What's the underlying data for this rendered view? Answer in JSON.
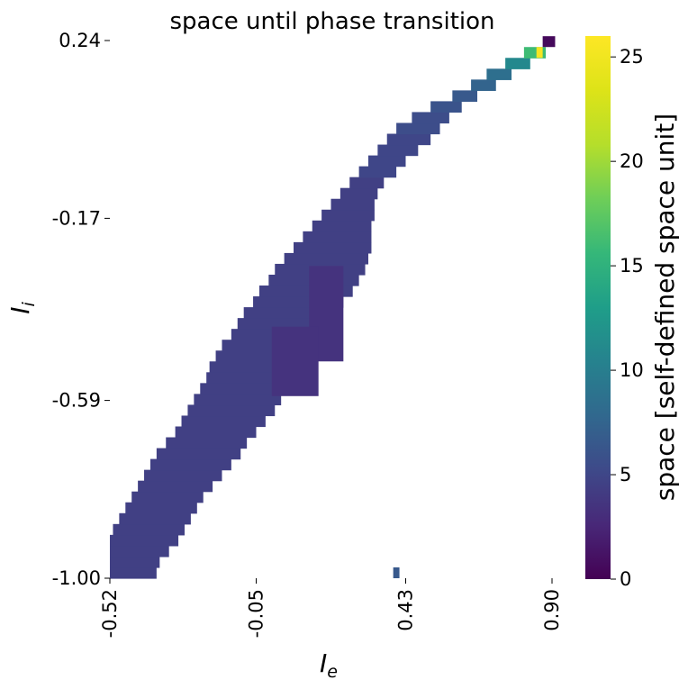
{
  "chart_data": {
    "type": "heatmap",
    "title": "space until phase transition",
    "xlabel": {
      "base": "I",
      "sub": "e"
    },
    "ylabel": {
      "base": "I",
      "sub": "i"
    },
    "x_range": [
      -0.52,
      0.9
    ],
    "y_range": [
      -1.0,
      0.24
    ],
    "x_ticks": [
      -0.52,
      -0.05,
      0.43,
      0.9
    ],
    "x_tick_labels": [
      "-0.52",
      "-0.05",
      "0.43",
      "0.90"
    ],
    "y_ticks": [
      0.24,
      -0.17,
      -0.59,
      -1.0
    ],
    "y_tick_labels": [
      "0.24",
      "-0.17",
      "-0.59",
      "-1.00"
    ],
    "colorbar": {
      "label": "space [self-defined space unit]",
      "colormap": "viridis",
      "range": [
        0,
        26
      ],
      "ticks": [
        0,
        5,
        10,
        15,
        20,
        25
      ],
      "tick_labels": [
        "0",
        "5",
        "10",
        "15",
        "20",
        "25"
      ]
    },
    "grid": false,
    "region_description": "Nonzero values fill a diagonal band from lower-left to upper-right; elsewhere cells are empty (white).",
    "bands": [
      {
        "y": -0.9875,
        "x_min": -0.52,
        "x_max": -0.37,
        "value": 4.5
      },
      {
        "y": -0.9625,
        "x_min": -0.52,
        "x_max": -0.36,
        "value": 4.5
      },
      {
        "y": -0.9375,
        "x_min": -0.52,
        "x_max": -0.33,
        "value": 4.5
      },
      {
        "y": -0.9125,
        "x_min": -0.52,
        "x_max": -0.3,
        "value": 4.5
      },
      {
        "y": -0.8875,
        "x_min": -0.51,
        "x_max": -0.28,
        "value": 4.5
      },
      {
        "y": -0.8625,
        "x_min": -0.49,
        "x_max": -0.26,
        "value": 4.5
      },
      {
        "y": -0.8375,
        "x_min": -0.47,
        "x_max": -0.24,
        "value": 4.5
      },
      {
        "y": -0.8125,
        "x_min": -0.45,
        "x_max": -0.22,
        "value": 4.5
      },
      {
        "y": -0.7875,
        "x_min": -0.43,
        "x_max": -0.19,
        "value": 4.5
      },
      {
        "y": -0.7625,
        "x_min": -0.41,
        "x_max": -0.16,
        "value": 4.5
      },
      {
        "y": -0.7375,
        "x_min": -0.39,
        "x_max": -0.13,
        "value": 4.5
      },
      {
        "y": -0.7125,
        "x_min": -0.37,
        "x_max": -0.1,
        "value": 4.5
      },
      {
        "y": -0.6875,
        "x_min": -0.34,
        "x_max": -0.08,
        "value": 4.5
      },
      {
        "y": -0.6625,
        "x_min": -0.31,
        "x_max": -0.05,
        "value": 4.5
      },
      {
        "y": -0.6375,
        "x_min": -0.29,
        "x_max": -0.02,
        "value": 4.5
      },
      {
        "y": -0.6125,
        "x_min": -0.27,
        "x_max": 0.01,
        "value": 4.5
      },
      {
        "y": -0.5875,
        "x_min": -0.25,
        "x_max": 0.03,
        "value": 4.5
      },
      {
        "y": -0.5625,
        "x_min": -0.23,
        "x_max": 0.05,
        "value": 4.5
      },
      {
        "y": -0.5375,
        "x_min": -0.21,
        "x_max": 0.07,
        "value": 4.5
      },
      {
        "y": -0.5125,
        "x_min": -0.2,
        "x_max": 0.09,
        "value": 4.5
      },
      {
        "y": -0.4875,
        "x_min": -0.18,
        "x_max": 0.11,
        "value": 4.5
      },
      {
        "y": -0.4625,
        "x_min": -0.16,
        "x_max": 0.14,
        "value": 4.5
      },
      {
        "y": -0.4375,
        "x_min": -0.13,
        "x_max": 0.16,
        "value": 4.5
      },
      {
        "y": -0.4125,
        "x_min": -0.11,
        "x_max": 0.18,
        "value": 4.5
      },
      {
        "y": -0.3875,
        "x_min": -0.09,
        "x_max": 0.2,
        "value": 4.5
      },
      {
        "y": -0.3625,
        "x_min": -0.06,
        "x_max": 0.23,
        "value": 4.5
      },
      {
        "y": -0.3375,
        "x_min": -0.04,
        "x_max": 0.26,
        "value": 4.5
      },
      {
        "y": -0.3125,
        "x_min": -0.01,
        "x_max": 0.28,
        "value": 4.5
      },
      {
        "y": -0.2875,
        "x_min": 0.01,
        "x_max": 0.3,
        "value": 4.5
      },
      {
        "y": -0.2625,
        "x_min": 0.04,
        "x_max": 0.31,
        "value": 4.5
      },
      {
        "y": -0.2375,
        "x_min": 0.07,
        "x_max": 0.32,
        "value": 4.5
      },
      {
        "y": -0.2125,
        "x_min": 0.1,
        "x_max": 0.32,
        "value": 4.5
      },
      {
        "y": -0.1875,
        "x_min": 0.13,
        "x_max": 0.32,
        "value": 4.5
      },
      {
        "y": -0.1625,
        "x_min": 0.16,
        "x_max": 0.33,
        "value": 4.5
      },
      {
        "y": -0.1375,
        "x_min": 0.19,
        "x_max": 0.33,
        "value": 4.5
      },
      {
        "y": -0.1125,
        "x_min": 0.22,
        "x_max": 0.34,
        "value": 4.5
      },
      {
        "y": -0.0875,
        "x_min": 0.25,
        "x_max": 0.36,
        "value": 4.5
      },
      {
        "y": -0.0625,
        "x_min": 0.28,
        "x_max": 0.4,
        "value": 5.0
      },
      {
        "y": -0.0375,
        "x_min": 0.31,
        "x_max": 0.43,
        "value": 5.0
      },
      {
        "y": -0.0125,
        "x_min": 0.34,
        "x_max": 0.47,
        "value": 5.0
      },
      {
        "y": 0.0125,
        "x_min": 0.37,
        "x_max": 0.51,
        "value": 5.0
      },
      {
        "y": 0.0375,
        "x_min": 0.4,
        "x_max": 0.54,
        "value": 5.5
      },
      {
        "y": 0.0625,
        "x_min": 0.45,
        "x_max": 0.57,
        "value": 5.5
      },
      {
        "y": 0.0875,
        "x_min": 0.51,
        "x_max": 0.61,
        "value": 6.0
      },
      {
        "y": 0.1125,
        "x_min": 0.58,
        "x_max": 0.66,
        "value": 6.5
      },
      {
        "y": 0.1375,
        "x_min": 0.64,
        "x_max": 0.72,
        "value": 7.5
      },
      {
        "y": 0.1625,
        "x_min": 0.69,
        "x_max": 0.77,
        "value": 8.5
      },
      {
        "y": 0.1875,
        "x_min": 0.75,
        "x_max": 0.83,
        "value": 11.0
      },
      {
        "y": 0.2125,
        "x_min": 0.81,
        "x_max": 0.88,
        "value": 16.0
      }
    ],
    "patches": [
      {
        "x_min": 0.12,
        "x_max": 0.23,
        "y_min": -0.5,
        "y_max": -0.28,
        "value": 3.5
      },
      {
        "x_min": 0.0,
        "x_max": 0.15,
        "y_min": -0.58,
        "y_max": -0.42,
        "value": 3.5
      },
      {
        "x_min": 0.85,
        "x_max": 0.87,
        "y_min": 0.2,
        "y_max": 0.225,
        "value": 25.5
      },
      {
        "x_min": 0.87,
        "x_max": 0.91,
        "y_min": 0.225,
        "y_max": 0.25,
        "value": 0.5
      },
      {
        "x_min": 0.39,
        "x_max": 0.41,
        "y_min": -1.0,
        "y_max": -0.975,
        "value": 6.5
      }
    ]
  }
}
